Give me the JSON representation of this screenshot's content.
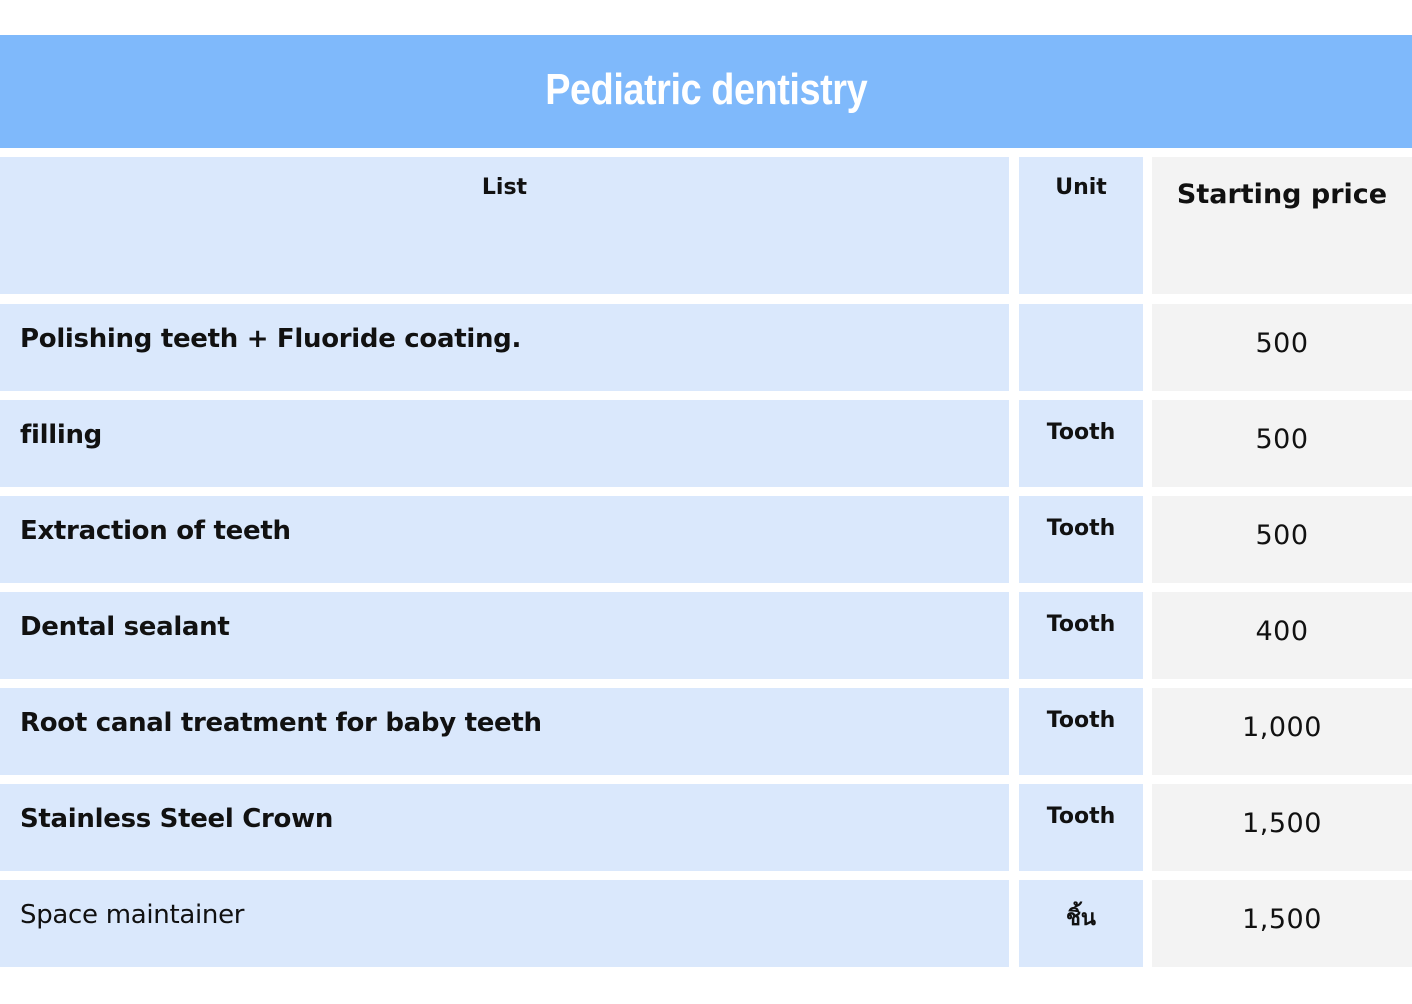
{
  "title": "Pediatric dentistry",
  "headers": {
    "list": "List",
    "unit": "Unit",
    "price": "Starting price"
  },
  "rows": [
    {
      "label": "Polishing teeth + Fluoride coating.",
      "unit": "",
      "price": "500"
    },
    {
      "label": "filling",
      "unit": "Tooth",
      "price": "500"
    },
    {
      "label": "Extraction of teeth",
      "unit": "Tooth",
      "price": "500"
    },
    {
      "label": "Dental sealant",
      "unit": "Tooth",
      "price": "400"
    },
    {
      "label": "Root canal treatment for baby teeth",
      "unit": "Tooth",
      "price": "1,000"
    },
    {
      "label": "Stainless Steel Crown",
      "unit": "Tooth",
      "price": "1,500"
    },
    {
      "label": "Space maintainer",
      "unit": "ชิ้น",
      "price": "1,500"
    }
  ],
  "colors": {
    "title_bar": "#7fb9fb",
    "cell_blue": "#dae8fc",
    "cell_gray": "#f3f3f3",
    "title_text": "#ffffff"
  }
}
